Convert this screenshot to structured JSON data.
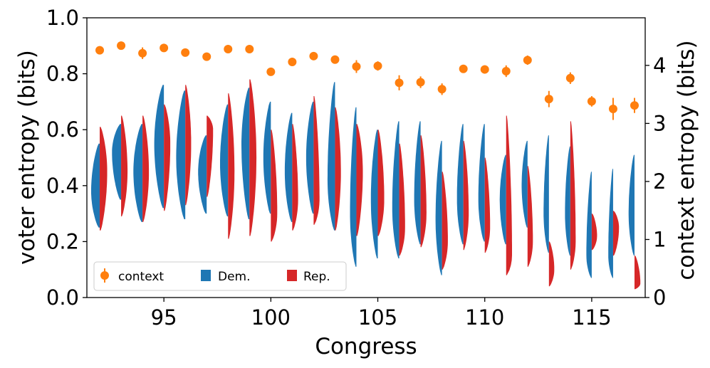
{
  "chart_data": {
    "type": "violin+errorbar",
    "xlabel": "Congress",
    "ylabel_left": "voter entropy (bits)",
    "ylabel_right": "context entropy (bits)",
    "xlim": [
      91.4,
      117.5
    ],
    "ylim_left": [
      0,
      1.0
    ],
    "ylim_right": [
      0,
      4.82
    ],
    "x_ticks": [
      95,
      100,
      105,
      110,
      115
    ],
    "y_ticks_left": [
      "0.0",
      "0.2",
      "0.4",
      "0.6",
      "0.8",
      "1.0"
    ],
    "y_ticks_right": [
      "0",
      "1",
      "2",
      "3",
      "4"
    ],
    "legend": {
      "position": "lower-left",
      "items": [
        "context",
        "Dem.",
        "Rep."
      ]
    },
    "colors": {
      "context": "#ff7f0e",
      "dem": "#1f77b4",
      "rep": "#d62728"
    },
    "congresses": [
      92,
      93,
      94,
      95,
      96,
      97,
      98,
      99,
      100,
      101,
      102,
      103,
      104,
      105,
      106,
      107,
      108,
      109,
      110,
      111,
      112,
      113,
      114,
      115,
      116,
      117
    ],
    "context_entropy": [
      4.26,
      4.34,
      4.21,
      4.3,
      4.22,
      4.15,
      4.28,
      4.28,
      3.89,
      4.06,
      4.16,
      4.1,
      3.98,
      3.99,
      3.7,
      3.71,
      3.59,
      3.94,
      3.93,
      3.9,
      4.09,
      3.42,
      3.78,
      3.38,
      3.25,
      3.31
    ],
    "context_err": [
      0.06,
      0.06,
      0.1,
      0.06,
      0.06,
      0.06,
      0.06,
      0.06,
      0.06,
      0.07,
      0.06,
      0.07,
      0.11,
      0.08,
      0.13,
      0.1,
      0.1,
      0.06,
      0.07,
      0.1,
      0.08,
      0.14,
      0.1,
      0.09,
      0.19,
      0.13
    ],
    "dem_violins": [
      {
        "min": 0.25,
        "max": 0.55,
        "mode": 0.38,
        "width": 0.8
      },
      {
        "min": 0.35,
        "max": 0.62,
        "mode": 0.52,
        "width": 0.85
      },
      {
        "min": 0.27,
        "max": 0.62,
        "mode": 0.45,
        "width": 0.85
      },
      {
        "min": 0.32,
        "max": 0.76,
        "mode": 0.55,
        "width": 0.9
      },
      {
        "min": 0.28,
        "max": 0.74,
        "mode": 0.5,
        "width": 0.85
      },
      {
        "min": 0.3,
        "max": 0.58,
        "mode": 0.45,
        "width": 0.8
      },
      {
        "min": 0.29,
        "max": 0.69,
        "mode": 0.48,
        "width": 0.75
      },
      {
        "min": 0.28,
        "max": 0.75,
        "mode": 0.55,
        "width": 0.75
      },
      {
        "min": 0.3,
        "max": 0.7,
        "mode": 0.5,
        "width": 0.7
      },
      {
        "min": 0.27,
        "max": 0.66,
        "mode": 0.45,
        "width": 0.7
      },
      {
        "min": 0.3,
        "max": 0.7,
        "mode": 0.5,
        "width": 0.7
      },
      {
        "min": 0.24,
        "max": 0.77,
        "mode": 0.42,
        "width": 0.7
      },
      {
        "min": 0.11,
        "max": 0.68,
        "mode": 0.3,
        "width": 0.6
      },
      {
        "min": 0.14,
        "max": 0.6,
        "mode": 0.35,
        "width": 0.65
      },
      {
        "min": 0.14,
        "max": 0.63,
        "mode": 0.32,
        "width": 0.65
      },
      {
        "min": 0.19,
        "max": 0.63,
        "mode": 0.35,
        "width": 0.6
      },
      {
        "min": 0.08,
        "max": 0.56,
        "mode": 0.28,
        "width": 0.6
      },
      {
        "min": 0.19,
        "max": 0.62,
        "mode": 0.35,
        "width": 0.6
      },
      {
        "min": 0.2,
        "max": 0.62,
        "mode": 0.35,
        "width": 0.6
      },
      {
        "min": 0.19,
        "max": 0.51,
        "mode": 0.35,
        "width": 0.6
      },
      {
        "min": 0.25,
        "max": 0.56,
        "mode": 0.4,
        "width": 0.55
      },
      {
        "min": 0.16,
        "max": 0.58,
        "mode": 0.3,
        "width": 0.5
      },
      {
        "min": 0.15,
        "max": 0.54,
        "mode": 0.3,
        "width": 0.5
      },
      {
        "min": 0.07,
        "max": 0.45,
        "mode": 0.15,
        "width": 0.5
      },
      {
        "min": 0.07,
        "max": 0.46,
        "mode": 0.15,
        "width": 0.45
      },
      {
        "min": 0.15,
        "max": 0.51,
        "mode": 0.3,
        "width": 0.55
      }
    ],
    "rep_violins": [
      {
        "min": 0.24,
        "max": 0.61,
        "mode": 0.45,
        "width": 0.7
      },
      {
        "min": 0.29,
        "max": 0.65,
        "mode": 0.45,
        "width": 0.6
      },
      {
        "min": 0.27,
        "max": 0.65,
        "mode": 0.45,
        "width": 0.6
      },
      {
        "min": 0.31,
        "max": 0.69,
        "mode": 0.55,
        "width": 0.6
      },
      {
        "min": 0.33,
        "max": 0.76,
        "mode": 0.55,
        "width": 0.55
      },
      {
        "min": 0.36,
        "max": 0.65,
        "mode": 0.6,
        "width": 0.6
      },
      {
        "min": 0.21,
        "max": 0.73,
        "mode": 0.45,
        "width": 0.6
      },
      {
        "min": 0.22,
        "max": 0.78,
        "mode": 0.5,
        "width": 0.65
      },
      {
        "min": 0.2,
        "max": 0.6,
        "mode": 0.3,
        "width": 0.6
      },
      {
        "min": 0.24,
        "max": 0.62,
        "mode": 0.35,
        "width": 0.55
      },
      {
        "min": 0.26,
        "max": 0.72,
        "mode": 0.35,
        "width": 0.55
      },
      {
        "min": 0.24,
        "max": 0.68,
        "mode": 0.45,
        "width": 0.55
      },
      {
        "min": 0.22,
        "max": 0.62,
        "mode": 0.45,
        "width": 0.6
      },
      {
        "min": 0.22,
        "max": 0.6,
        "mode": 0.35,
        "width": 0.6
      },
      {
        "min": 0.15,
        "max": 0.55,
        "mode": 0.25,
        "width": 0.55
      },
      {
        "min": 0.18,
        "max": 0.58,
        "mode": 0.3,
        "width": 0.55
      },
      {
        "min": 0.1,
        "max": 0.45,
        "mode": 0.2,
        "width": 0.55
      },
      {
        "min": 0.17,
        "max": 0.56,
        "mode": 0.3,
        "width": 0.5
      },
      {
        "min": 0.16,
        "max": 0.5,
        "mode": 0.25,
        "width": 0.5
      },
      {
        "min": 0.08,
        "max": 0.65,
        "mode": 0.15,
        "width": 0.55
      },
      {
        "min": 0.11,
        "max": 0.47,
        "mode": 0.2,
        "width": 0.5
      },
      {
        "min": 0.04,
        "max": 0.2,
        "mode": 0.1,
        "width": 0.5
      },
      {
        "min": 0.1,
        "max": 0.63,
        "mode": 0.2,
        "width": 0.5
      },
      {
        "min": 0.17,
        "max": 0.3,
        "mode": 0.22,
        "width": 0.5
      },
      {
        "min": 0.15,
        "max": 0.31,
        "mode": 0.25,
        "width": 0.55
      },
      {
        "min": 0.03,
        "max": 0.15,
        "mode": 0.05,
        "width": 0.55
      }
    ]
  }
}
